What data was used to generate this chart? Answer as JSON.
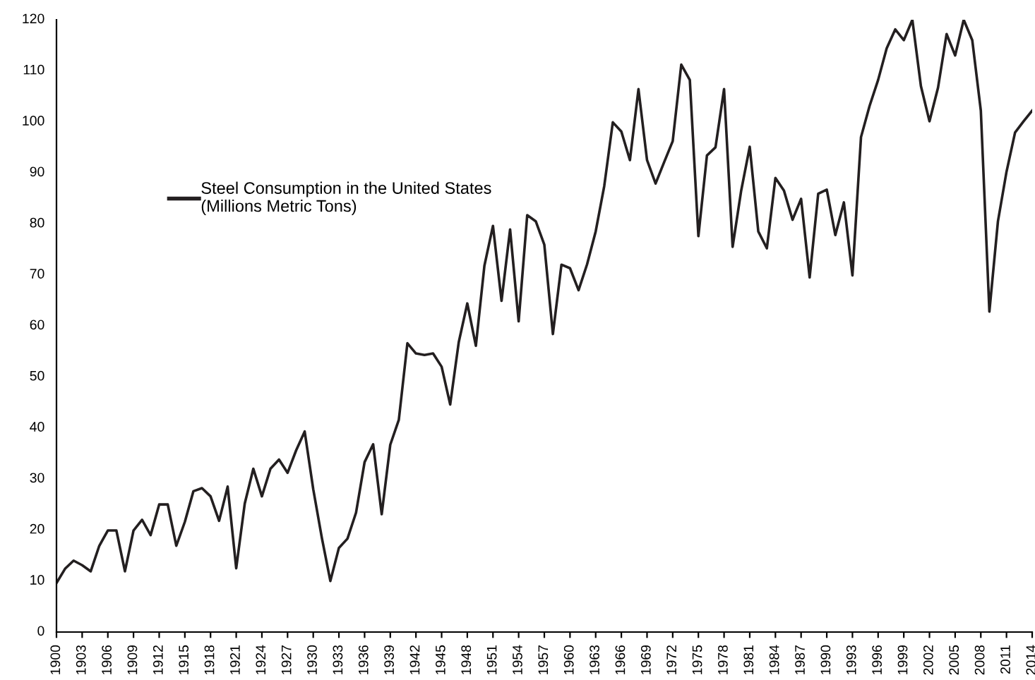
{
  "chart_data": {
    "type": "line",
    "x": [
      1900,
      1901,
      1902,
      1903,
      1904,
      1905,
      1906,
      1907,
      1908,
      1909,
      1910,
      1911,
      1912,
      1913,
      1914,
      1915,
      1916,
      1917,
      1918,
      1919,
      1920,
      1921,
      1922,
      1923,
      1924,
      1925,
      1926,
      1927,
      1928,
      1929,
      1930,
      1931,
      1932,
      1933,
      1934,
      1935,
      1936,
      1937,
      1938,
      1939,
      1940,
      1941,
      1942,
      1943,
      1944,
      1945,
      1946,
      1947,
      1948,
      1949,
      1950,
      1951,
      1952,
      1953,
      1954,
      1955,
      1956,
      1957,
      1958,
      1959,
      1960,
      1961,
      1962,
      1963,
      1964,
      1965,
      1966,
      1967,
      1968,
      1969,
      1970,
      1971,
      1972,
      1973,
      1974,
      1975,
      1976,
      1977,
      1978,
      1979,
      1980,
      1981,
      1982,
      1983,
      1984,
      1985,
      1986,
      1987,
      1988,
      1989,
      1990,
      1991,
      1992,
      1993,
      1994,
      1995,
      1996,
      1997,
      1998,
      1999,
      2000,
      2001,
      2002,
      2003,
      2004,
      2005,
      2006,
      2007,
      2008,
      2009,
      2010,
      2011,
      2012,
      2013,
      2014
    ],
    "series": [
      {
        "name": "Steel Consumption in the United States\n(Millions Metric Tons)",
        "color": "#231f20",
        "values": [
          9.6,
          12.4,
          14.0,
          13.1,
          11.9,
          16.9,
          19.9,
          19.9,
          11.9,
          19.9,
          22.0,
          19.0,
          25.0,
          25.0,
          16.9,
          21.6,
          27.6,
          28.2,
          26.6,
          21.8,
          28.5,
          12.5,
          25.2,
          32.0,
          26.6,
          32.0,
          33.8,
          31.2,
          35.6,
          39.3,
          28.0,
          18.5,
          10.0,
          16.5,
          18.3,
          23.4,
          33.3,
          36.8,
          23.1,
          36.7,
          41.6,
          56.6,
          54.6,
          54.3,
          54.6,
          52.0,
          44.6,
          56.8,
          64.4,
          56.1,
          71.8,
          79.6,
          64.9,
          78.9,
          60.9,
          81.7,
          80.5,
          75.9,
          58.4,
          72.0,
          71.3,
          67.0,
          72.1,
          78.5,
          87.4,
          99.9,
          98.1,
          92.5,
          106.4,
          92.5,
          87.9,
          92.1,
          96.2,
          111.2,
          108.2,
          77.6,
          93.4,
          95.0,
          106.4,
          75.5,
          86.5,
          95.1,
          78.5,
          75.2,
          89.0,
          86.5,
          80.8,
          84.9,
          69.5,
          85.9,
          86.7,
          77.8,
          84.2,
          69.9,
          97.0,
          103.1,
          108.2,
          114.4,
          118.1,
          116.0,
          120.0,
          107.0,
          100.1,
          106.7,
          117.2,
          113.0,
          120.0,
          116.0,
          102.2,
          62.8,
          80.5,
          90.2,
          97.9,
          100.1,
          102.2
        ]
      }
    ],
    "xlim": [
      1900,
      2014
    ],
    "xticks": [
      1900,
      1903,
      1906,
      1909,
      1912,
      1915,
      1918,
      1921,
      1924,
      1927,
      1930,
      1933,
      1936,
      1939,
      1942,
      1945,
      1948,
      1951,
      1954,
      1957,
      1960,
      1963,
      1966,
      1969,
      1972,
      1975,
      1978,
      1981,
      1984,
      1987,
      1990,
      1993,
      1996,
      1999,
      2002,
      2005,
      2008,
      2011,
      2014
    ],
    "ylim": [
      0,
      120
    ],
    "yticks": [
      0,
      10,
      20,
      30,
      40,
      50,
      60,
      70,
      80,
      90,
      100,
      110,
      120
    ],
    "grid": false,
    "legend": "top left",
    "marker": "none",
    "line_style": "solid"
  }
}
